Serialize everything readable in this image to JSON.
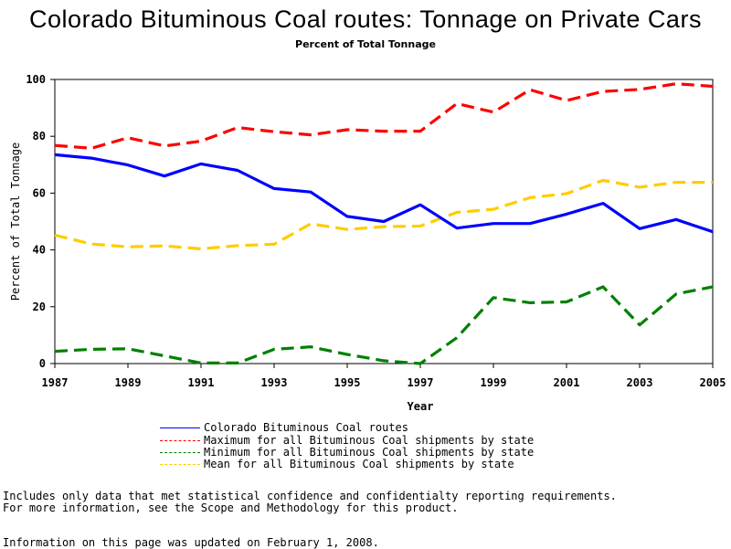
{
  "chart_data": {
    "type": "line",
    "title": "Colorado Bituminous Coal routes: Tonnage on Private Cars",
    "subtitle": "Percent of Total Tonnage",
    "xlabel": "Year",
    "ylabel": "Percent of Total Tonnage",
    "xlim": [
      1987,
      2005
    ],
    "ylim": [
      0,
      100
    ],
    "x_ticks": [
      1987,
      1989,
      1991,
      1993,
      1995,
      1997,
      1999,
      2001,
      2003,
      2005
    ],
    "y_ticks": [
      0,
      20,
      40,
      60,
      80,
      100
    ],
    "x": [
      1987,
      1988,
      1989,
      1990,
      1991,
      1992,
      1993,
      1994,
      1995,
      1996,
      1997,
      1998,
      1999,
      2000,
      2001,
      2002,
      2003,
      2004,
      2005
    ],
    "series": [
      {
        "name": "Colorado Bituminous Coal routes",
        "color": "#0000ff",
        "style": "solid",
        "values": [
          73.5,
          72.3,
          69.9,
          66.0,
          70.3,
          68.0,
          61.6,
          60.4,
          51.8,
          50.0,
          55.9,
          47.7,
          49.3,
          49.3,
          52.6,
          56.4,
          47.5,
          50.7,
          46.4
        ]
      },
      {
        "name": "Maximum for all Bituminous Coal shipments by state",
        "color": "#ff0000",
        "style": "dashed",
        "values": [
          76.8,
          75.8,
          79.5,
          76.6,
          78.3,
          83.1,
          81.6,
          80.5,
          82.3,
          81.8,
          81.8,
          91.5,
          88.5,
          96.4,
          92.6,
          95.8,
          96.5,
          98.5,
          97.6
        ]
      },
      {
        "name": "Minimum for all Bituminous Coal shipments by state",
        "color": "#008000",
        "style": "dashed",
        "values": [
          4.3,
          5.0,
          5.2,
          2.7,
          0.2,
          0.2,
          5.0,
          5.9,
          3.2,
          1.0,
          0.0,
          9.1,
          23.2,
          21.4,
          21.7,
          27.0,
          13.6,
          24.5,
          27.0
        ]
      },
      {
        "name": "Mean for all Bituminous Coal shipments by state",
        "color": "#ffcc00",
        "style": "dashed",
        "values": [
          45.2,
          42.1,
          41.1,
          41.4,
          40.4,
          41.5,
          42.0,
          49.2,
          47.2,
          48.2,
          48.4,
          53.2,
          54.3,
          58.4,
          59.8,
          64.5,
          62.1,
          63.8,
          63.8
        ]
      }
    ],
    "legend_placement": "bottom",
    "grid": false
  },
  "footnotes": {
    "line1": "Includes only data that met statistical confidence and confidentialty reporting requirements.",
    "line2": "For more information, see the Scope and Methodology for this product.",
    "line3": "Information on this page was updated on February 1, 2008."
  }
}
